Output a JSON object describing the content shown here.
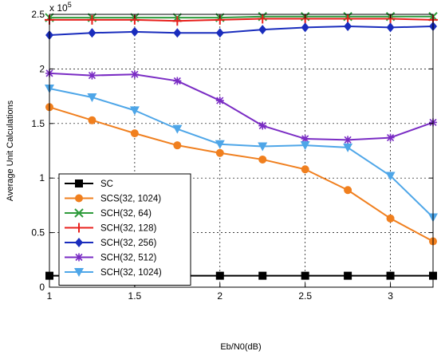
{
  "chart_data": {
    "type": "line",
    "xlabel": "Eb/N0(dB)",
    "ylabel": "Average Unit Calculations",
    "y_multiplier_label": "x 10",
    "y_multiplier_exponent": "5",
    "xlim": [
      1,
      3.25
    ],
    "ylim": [
      0,
      2.5
    ],
    "x_ticks": [
      1,
      1.5,
      2,
      2.5,
      3
    ],
    "x_tick_labels": [
      "1",
      "1.5",
      "2",
      "2.5",
      "3"
    ],
    "y_ticks": [
      0,
      0.5,
      1,
      1.5,
      2,
      2.5
    ],
    "y_tick_labels": [
      "0",
      "0.5",
      "1",
      "1.5",
      "2",
      "2.5"
    ],
    "grid": true,
    "legend_position": "lower-left",
    "x": [
      1,
      1.25,
      1.5,
      1.75,
      2,
      2.25,
      2.5,
      2.75,
      3,
      3.25
    ],
    "series": [
      {
        "name": "SC",
        "color": "#000000",
        "marker": "square",
        "values": [
          0.105,
          0.105,
          0.105,
          0.105,
          0.105,
          0.105,
          0.105,
          0.105,
          0.105,
          0.105
        ]
      },
      {
        "name": "SCS(32, 1024)",
        "color": "#F07F1E",
        "marker": "circle",
        "values": [
          1.65,
          1.53,
          1.41,
          1.3,
          1.23,
          1.17,
          1.08,
          0.89,
          0.63,
          0.42
        ]
      },
      {
        "name": "SCH(32, 64)",
        "color": "#2E9B3C",
        "marker": "x",
        "values": [
          2.47,
          2.47,
          2.47,
          2.47,
          2.47,
          2.48,
          2.48,
          2.48,
          2.48,
          2.48
        ]
      },
      {
        "name": "SCH(32, 128)",
        "color": "#E8201C",
        "marker": "plus",
        "values": [
          2.45,
          2.45,
          2.45,
          2.44,
          2.45,
          2.46,
          2.46,
          2.46,
          2.46,
          2.45
        ]
      },
      {
        "name": "SCH(32, 256)",
        "color": "#1A2DBD",
        "marker": "diamond",
        "values": [
          2.31,
          2.33,
          2.34,
          2.33,
          2.33,
          2.36,
          2.38,
          2.39,
          2.38,
          2.39
        ]
      },
      {
        "name": "SCH(32, 512)",
        "color": "#7A2CC4",
        "marker": "asterisk",
        "values": [
          1.96,
          1.94,
          1.95,
          1.89,
          1.71,
          1.48,
          1.36,
          1.35,
          1.37,
          1.51
        ]
      },
      {
        "name": "SCH(32, 1024)",
        "color": "#4EA6E8",
        "marker": "triangle-down",
        "values": [
          1.82,
          1.74,
          1.62,
          1.45,
          1.31,
          1.29,
          1.3,
          1.28,
          1.02,
          0.64
        ]
      }
    ]
  }
}
